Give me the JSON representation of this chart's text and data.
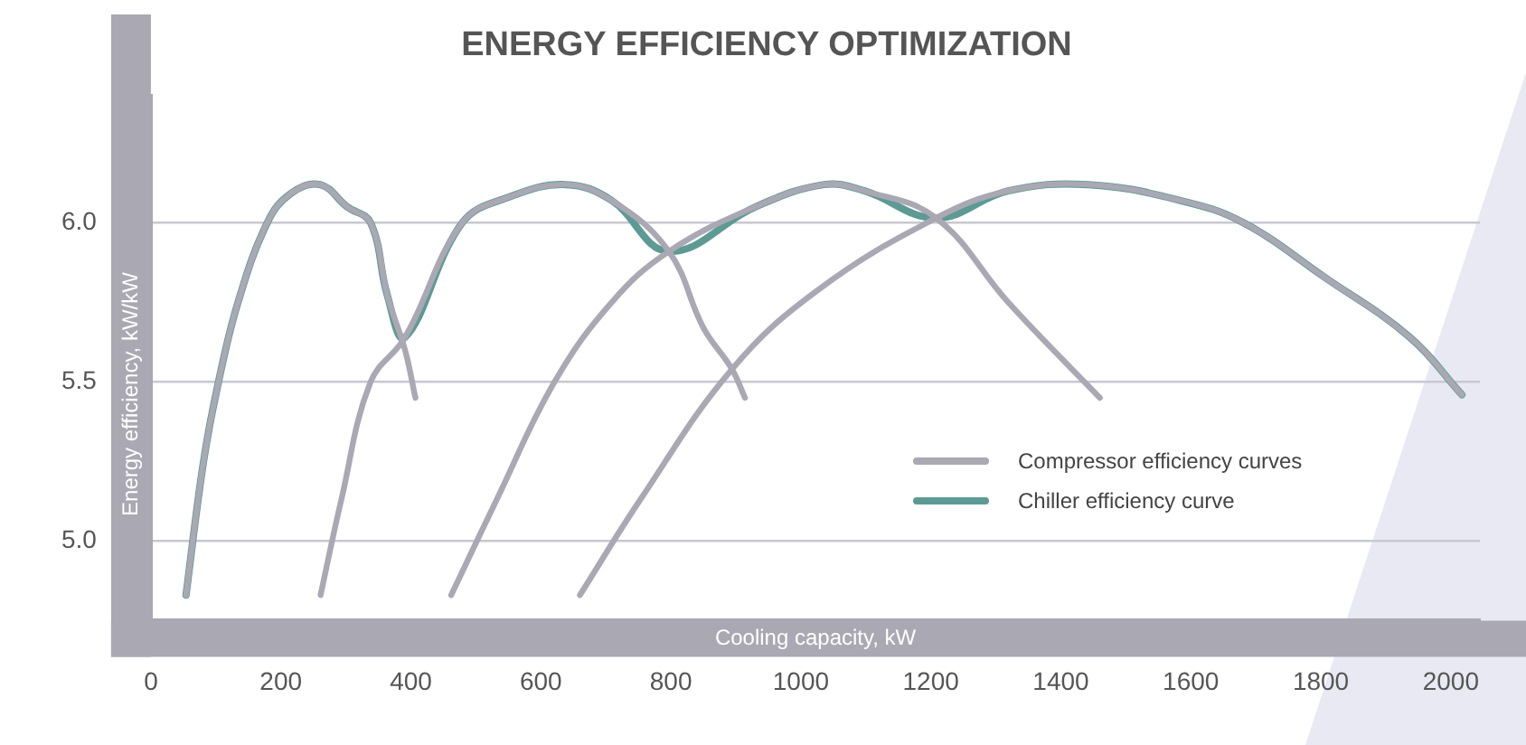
{
  "chart_data": {
    "type": "line",
    "title": "ENERGY EFFICIENCY OPTIMIZATION",
    "xlabel": "Cooling capacity, kW",
    "ylabel": "Energy efficiency, kW/kW",
    "xlim": [
      0,
      2045
    ],
    "xticks": [
      0,
      200,
      400,
      600,
      800,
      1000,
      1200,
      1400,
      1600,
      1800,
      2000
    ],
    "ylim": [
      4.75,
      6.4
    ],
    "yticks": [
      {
        "value": 5,
        "label": "5.0"
      },
      {
        "value": 5.5,
        "label": "5.5"
      },
      {
        "value": 6,
        "label": "6.0"
      }
    ],
    "grid": "y",
    "legend": "right",
    "marker": "none",
    "line_style": "solid",
    "series": [
      {
        "name": "Compressor efficiency curves",
        "color": "#a9a8b3",
        "x": [
          54,
          81,
          104,
          134,
          179,
          214,
          260,
          302,
          338,
          364,
          391,
          407
        ],
        "values": [
          4.83,
          5.25,
          5.5,
          5.75,
          6.0,
          6.09,
          6.12,
          6.05,
          6.0,
          5.77,
          5.6,
          5.45
        ]
      },
      {
        "color": "#a9a8b3",
        "x": [
          261,
          293,
          338,
          391,
          479,
          550,
          638,
          709,
          797,
          850,
          894,
          914
        ],
        "values": [
          4.83,
          5.13,
          5.5,
          5.64,
          6.0,
          6.08,
          6.12,
          6.07,
          5.91,
          5.67,
          5.54,
          5.45
        ]
      },
      {
        "color": "#a9a8b3",
        "x": [
          462,
          532,
          621,
          709,
          797,
          930,
          1036,
          1098,
          1208,
          1319,
          1460
        ],
        "values": [
          4.83,
          5.13,
          5.5,
          5.75,
          5.91,
          6.05,
          6.12,
          6.1,
          6.015,
          5.75,
          5.45
        ]
      },
      {
        "color": "#a9a8b3",
        "x": [
          660,
          753,
          894,
          1027,
          1208,
          1319,
          1442,
          1584,
          1681,
          1805,
          1937,
          2017
        ],
        "values": [
          4.83,
          5.13,
          5.54,
          5.79,
          6.015,
          6.1,
          6.12,
          6.07,
          6.0,
          5.83,
          5.64,
          5.46
        ]
      },
      {
        "name": "Chiller efficiency curve",
        "color": "#5e9a94",
        "x": [
          54,
          81,
          104,
          134,
          179,
          214,
          260,
          302,
          338,
          364,
          391,
          479,
          550,
          638,
          709,
          797,
          930,
          1036,
          1098,
          1208,
          1319,
          1442,
          1584,
          1681,
          1805,
          1937,
          2017
        ],
        "values": [
          4.83,
          5.25,
          5.5,
          5.75,
          6.0,
          6.09,
          6.12,
          6.05,
          6.0,
          5.77,
          5.64,
          6.0,
          6.08,
          6.12,
          6.07,
          5.91,
          6.05,
          6.12,
          6.1,
          6.015,
          6.1,
          6.12,
          6.07,
          6.0,
          5.83,
          5.64,
          5.46
        ]
      }
    ]
  }
}
